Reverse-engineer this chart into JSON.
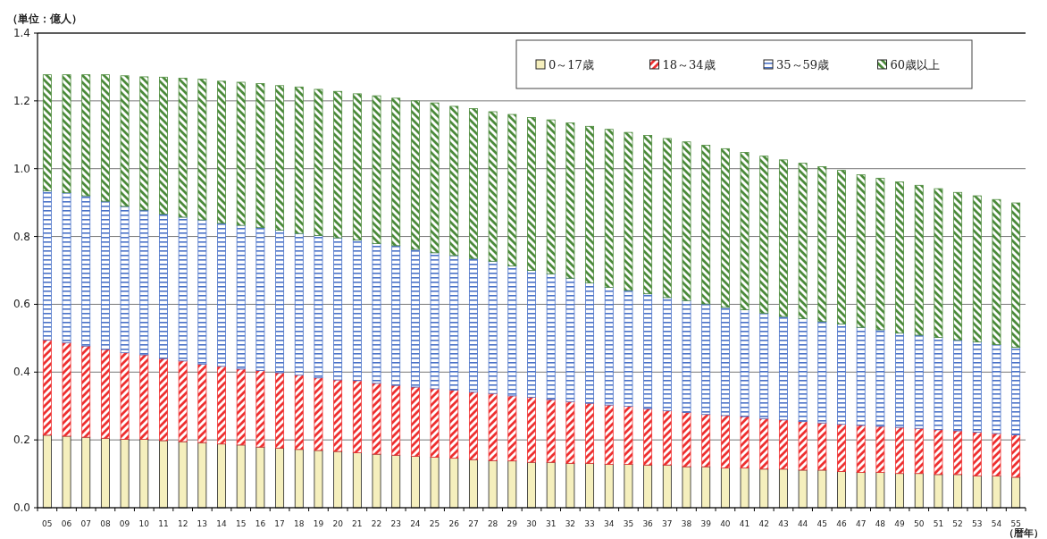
{
  "chart_data": {
    "type": "bar",
    "stacked": true,
    "ylabel": "（単位：億人）",
    "annotations": [
      "（暦年）"
    ],
    "categories": [
      "05",
      "06",
      "07",
      "08",
      "09",
      "10",
      "11",
      "12",
      "13",
      "14",
      "15",
      "16",
      "17",
      "18",
      "19",
      "20",
      "21",
      "22",
      "23",
      "24",
      "25",
      "26",
      "27",
      "28",
      "29",
      "30",
      "31",
      "32",
      "33",
      "34",
      "35",
      "36",
      "37",
      "38",
      "39",
      "40",
      "41",
      "42",
      "43",
      "44",
      "45",
      "46",
      "47",
      "48",
      "49",
      "50",
      "51",
      "52",
      "53",
      "54",
      "55"
    ],
    "ylim": [
      0,
      1.4
    ],
    "yticks": [
      {
        "value": 0,
        "label": "0.0"
      },
      {
        "value": 0.2,
        "label": "0.2"
      },
      {
        "value": 0.4,
        "label": "0.4"
      },
      {
        "value": 0.6,
        "label": "0.6"
      },
      {
        "value": 0.8,
        "label": "0.8"
      },
      {
        "value": 1.0,
        "label": "1.0"
      },
      {
        "value": 1.2,
        "label": "1.2"
      },
      {
        "value": 1.4,
        "label": "1.4"
      }
    ],
    "grid": "y",
    "legend": "top right",
    "series": [
      {
        "name": "0～17歳",
        "color": "#f5efbd",
        "values": [
          0.214,
          0.211,
          0.208,
          0.205,
          0.202,
          0.202,
          0.198,
          0.195,
          0.192,
          0.188,
          0.185,
          0.179,
          0.176,
          0.172,
          0.169,
          0.166,
          0.162,
          0.158,
          0.155,
          0.152,
          0.149,
          0.146,
          0.142,
          0.139,
          0.138,
          0.134,
          0.134,
          0.131,
          0.131,
          0.128,
          0.128,
          0.126,
          0.126,
          0.121,
          0.121,
          0.117,
          0.117,
          0.114,
          0.114,
          0.111,
          0.111,
          0.107,
          0.104,
          0.104,
          0.101,
          0.101,
          0.098,
          0.098,
          0.094,
          0.094,
          0.09
        ]
      },
      {
        "name": "18～34歳",
        "color": "#ee3030",
        "values": [
          0.281,
          0.276,
          0.269,
          0.262,
          0.255,
          0.249,
          0.242,
          0.238,
          0.231,
          0.229,
          0.224,
          0.226,
          0.222,
          0.219,
          0.214,
          0.211,
          0.213,
          0.209,
          0.206,
          0.204,
          0.202,
          0.201,
          0.199,
          0.198,
          0.192,
          0.192,
          0.185,
          0.182,
          0.177,
          0.175,
          0.171,
          0.166,
          0.16,
          0.16,
          0.154,
          0.155,
          0.152,
          0.149,
          0.145,
          0.143,
          0.139,
          0.139,
          0.139,
          0.136,
          0.136,
          0.133,
          0.132,
          0.129,
          0.129,
          0.125,
          0.125
        ]
      },
      {
        "name": "35～59歳",
        "color": "#4a72c8",
        "values": [
          0.44,
          0.442,
          0.443,
          0.437,
          0.432,
          0.427,
          0.426,
          0.424,
          0.426,
          0.422,
          0.424,
          0.421,
          0.421,
          0.418,
          0.42,
          0.419,
          0.415,
          0.412,
          0.412,
          0.406,
          0.401,
          0.397,
          0.394,
          0.39,
          0.383,
          0.374,
          0.371,
          0.364,
          0.355,
          0.347,
          0.342,
          0.339,
          0.334,
          0.33,
          0.326,
          0.319,
          0.315,
          0.311,
          0.305,
          0.304,
          0.299,
          0.296,
          0.289,
          0.285,
          0.278,
          0.275,
          0.272,
          0.268,
          0.266,
          0.262,
          0.258
        ]
      },
      {
        "name": "60歳以上",
        "color": "#4b8a3a",
        "values": [
          0.342,
          0.348,
          0.357,
          0.373,
          0.385,
          0.393,
          0.404,
          0.41,
          0.415,
          0.419,
          0.422,
          0.425,
          0.426,
          0.432,
          0.431,
          0.432,
          0.431,
          0.436,
          0.435,
          0.438,
          0.442,
          0.44,
          0.442,
          0.441,
          0.447,
          0.451,
          0.454,
          0.458,
          0.462,
          0.466,
          0.466,
          0.467,
          0.469,
          0.468,
          0.468,
          0.468,
          0.464,
          0.463,
          0.462,
          0.458,
          0.457,
          0.453,
          0.45,
          0.447,
          0.446,
          0.442,
          0.439,
          0.435,
          0.431,
          0.428,
          0.426
        ]
      }
    ]
  }
}
